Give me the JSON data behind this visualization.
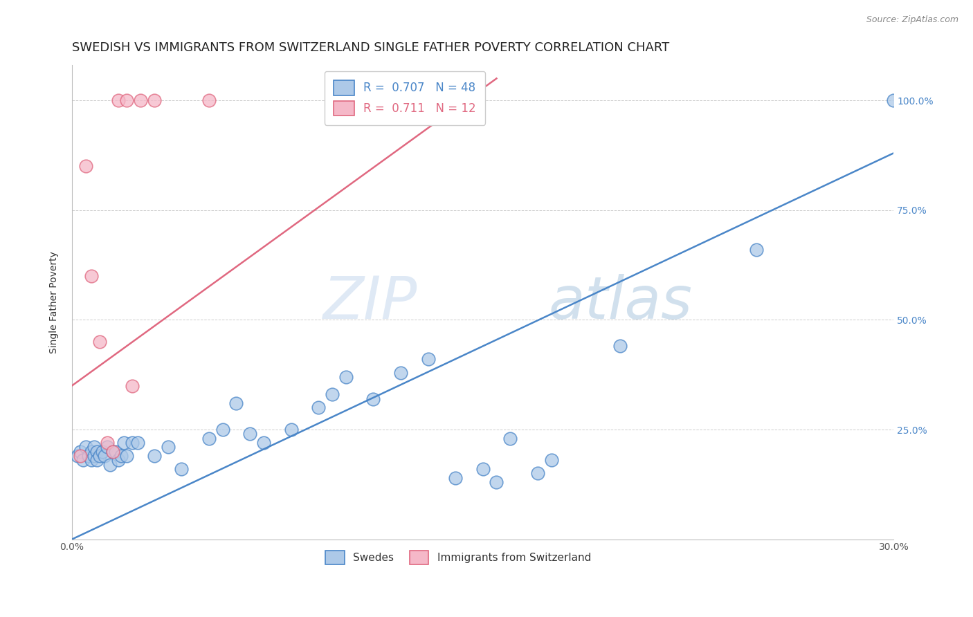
{
  "title": "SWEDISH VS IMMIGRANTS FROM SWITZERLAND SINGLE FATHER POVERTY CORRELATION CHART",
  "source": "Source: ZipAtlas.com",
  "ylabel": "Single Father Poverty",
  "xlabel": "",
  "watermark": "ZIPatlas",
  "xlim": [
    0.0,
    0.3
  ],
  "ylim": [
    0.0,
    1.08
  ],
  "yticks": [
    0.0,
    0.25,
    0.5,
    0.75,
    1.0
  ],
  "ytick_labels": [
    "",
    "25.0%",
    "50.0%",
    "75.0%",
    "100.0%"
  ],
  "xticks": [
    0.0,
    0.05,
    0.1,
    0.15,
    0.2,
    0.25,
    0.3
  ],
  "xtick_labels": [
    "0.0%",
    "",
    "",
    "",
    "",
    "",
    "30.0%"
  ],
  "blue_R": 0.707,
  "blue_N": 48,
  "pink_R": 0.711,
  "pink_N": 12,
  "blue_color": "#adc9e8",
  "pink_color": "#f5b8c8",
  "blue_line_color": "#4a86c8",
  "pink_line_color": "#e06880",
  "legend_blue_label": "Swedes",
  "legend_pink_label": "Immigrants from Switzerland",
  "blue_scatter_x": [
    0.002,
    0.003,
    0.004,
    0.005,
    0.006,
    0.007,
    0.007,
    0.008,
    0.008,
    0.009,
    0.009,
    0.01,
    0.011,
    0.012,
    0.013,
    0.014,
    0.015,
    0.016,
    0.017,
    0.018,
    0.019,
    0.02,
    0.022,
    0.024,
    0.03,
    0.035,
    0.04,
    0.05,
    0.055,
    0.06,
    0.065,
    0.07,
    0.08,
    0.09,
    0.095,
    0.1,
    0.11,
    0.12,
    0.13,
    0.14,
    0.15,
    0.155,
    0.16,
    0.17,
    0.175,
    0.2,
    0.25,
    0.3
  ],
  "blue_scatter_y": [
    0.19,
    0.2,
    0.18,
    0.21,
    0.19,
    0.2,
    0.18,
    0.19,
    0.21,
    0.2,
    0.18,
    0.19,
    0.2,
    0.19,
    0.21,
    0.17,
    0.2,
    0.2,
    0.18,
    0.19,
    0.22,
    0.19,
    0.22,
    0.22,
    0.19,
    0.21,
    0.16,
    0.23,
    0.25,
    0.31,
    0.24,
    0.22,
    0.25,
    0.3,
    0.33,
    0.37,
    0.32,
    0.38,
    0.41,
    0.14,
    0.16,
    0.13,
    0.23,
    0.15,
    0.18,
    0.44,
    0.66,
    1.0
  ],
  "pink_scatter_x": [
    0.003,
    0.005,
    0.007,
    0.01,
    0.013,
    0.015,
    0.017,
    0.02,
    0.022,
    0.025,
    0.03,
    0.05
  ],
  "pink_scatter_y": [
    0.19,
    0.85,
    0.6,
    0.45,
    0.22,
    0.2,
    1.0,
    1.0,
    0.35,
    1.0,
    1.0,
    1.0
  ],
  "blue_line_x": [
    0.0,
    0.3
  ],
  "blue_line_y": [
    0.0,
    0.88
  ],
  "pink_line_x": [
    0.0,
    0.155
  ],
  "pink_line_y": [
    0.35,
    1.05
  ],
  "title_fontsize": 13,
  "axis_label_fontsize": 10,
  "tick_fontsize": 10,
  "legend_fontsize": 11,
  "background_color": "#ffffff",
  "grid_color": "#cccccc"
}
